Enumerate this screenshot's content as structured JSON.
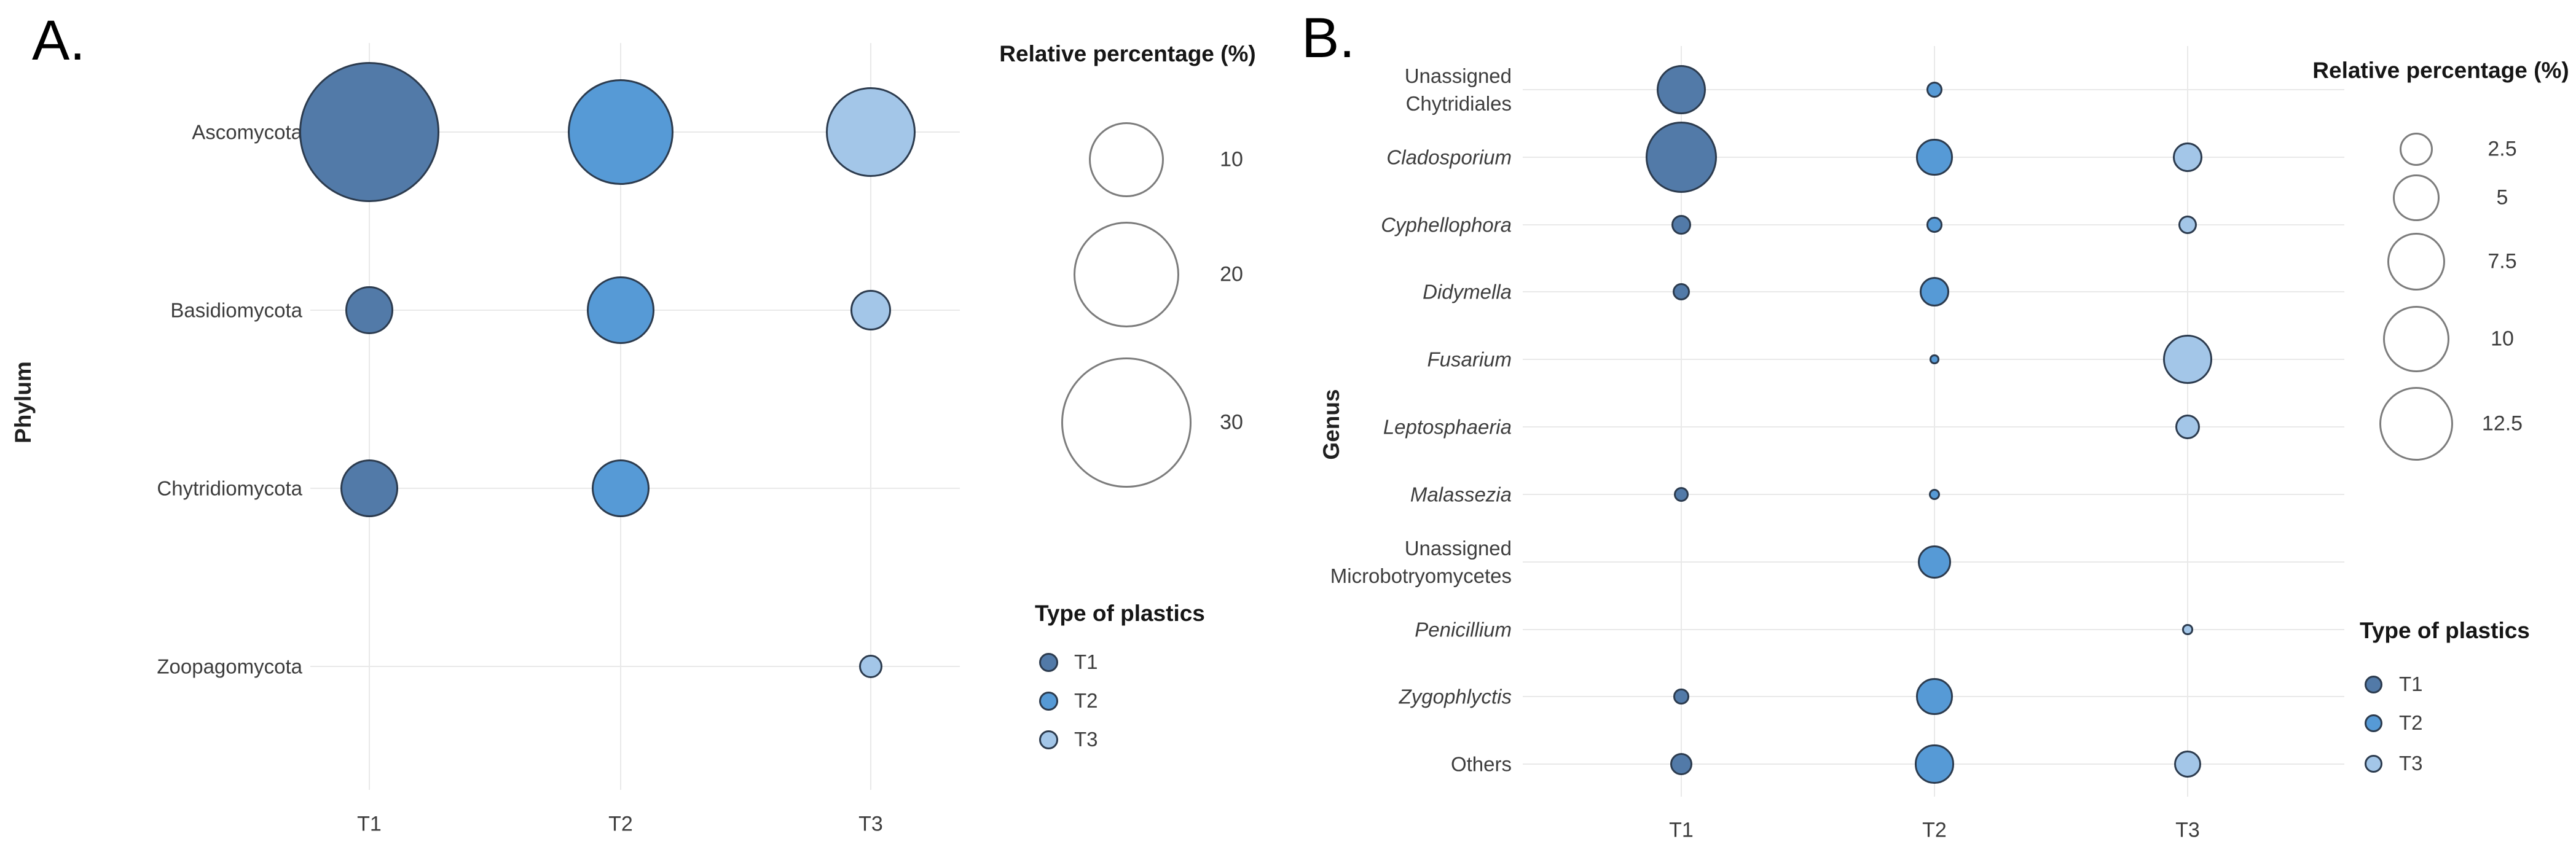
{
  "panels": [
    {
      "panel_label": "A.",
      "y_axis_title": "Phylum",
      "size_legend": {
        "title": "Relative percentage (%)"
      },
      "color_legend": {
        "title": "Type of plastics",
        "items": [
          {
            "label": "T1",
            "color": "#527AA8"
          },
          {
            "label": "T2",
            "color": "#569AD6"
          },
          {
            "label": "T3",
            "color": "#A3C6E8"
          }
        ]
      }
    },
    {
      "panel_label": "B.",
      "y_axis_title": "Genus",
      "size_legend": {
        "title": "Relative percentage (%)"
      },
      "color_legend": {
        "title": "Type of plastics",
        "items": [
          {
            "label": "T1",
            "color": "#527AA8"
          },
          {
            "label": "T2",
            "color": "#569AD6"
          },
          {
            "label": "T3",
            "color": "#A3C6E8"
          }
        ]
      }
    }
  ],
  "chart_data": [
    {
      "type": "scatter",
      "variant": "bubble",
      "panel": "A.",
      "ylabel": "Phylum",
      "xlabel": "",
      "grid": true,
      "legend_position": "right",
      "size_encoding": "area",
      "size_legend_title": "Relative percentage (%)",
      "size_legend_values": [
        10,
        20,
        30
      ],
      "color_legend_title": "Type of plastics",
      "x_categories": [
        "T1",
        "T2",
        "T3"
      ],
      "y_categories": [
        "Ascomycota",
        "Basidiomycota",
        "Chytridiomycota",
        "Zoopagomycota"
      ],
      "y_categories_italic": [
        false,
        false,
        false,
        false
      ],
      "series": [
        {
          "name": "T1",
          "color": "#527AA8",
          "values": [
            35,
            4,
            6,
            null
          ]
        },
        {
          "name": "T2",
          "color": "#569AD6",
          "values": [
            20,
            8,
            6,
            null
          ]
        },
        {
          "name": "T3",
          "color": "#A3C6E8",
          "values": [
            14.5,
            3,
            null,
            1
          ]
        }
      ]
    },
    {
      "type": "scatter",
      "variant": "bubble",
      "panel": "B.",
      "ylabel": "Genus",
      "xlabel": "",
      "grid": true,
      "legend_position": "right",
      "size_encoding": "area",
      "size_legend_title": "Relative percentage (%)",
      "size_legend_values": [
        2.5,
        5,
        7.5,
        10,
        12.5
      ],
      "color_legend_title": "Type of plastics",
      "x_categories": [
        "T1",
        "T2",
        "T3"
      ],
      "y_categories": [
        "Unassigned\nChytridiales",
        "Cladosporium",
        "Cyphellophora",
        "Didymella",
        "Fusarium",
        "Leptosphaeria",
        "Malassezia",
        "Unassigned\nMicrobotryomycetes",
        "Penicillium",
        "Zygophlyctis",
        "Others"
      ],
      "y_categories_italic": [
        false,
        true,
        true,
        true,
        true,
        true,
        true,
        false,
        true,
        true,
        false
      ],
      "series": [
        {
          "name": "T1",
          "color": "#527AA8",
          "values": [
            5.5,
            11.5,
            0.9,
            0.7,
            null,
            null,
            0.5,
            null,
            null,
            0.55,
            1.1
          ]
        },
        {
          "name": "T2",
          "color": "#569AD6",
          "values": [
            0.6,
            3,
            0.55,
            2,
            0.2,
            null,
            0.3,
            2.5,
            null,
            3,
            3.4
          ]
        },
        {
          "name": "T3",
          "color": "#A3C6E8",
          "values": [
            null,
            2,
            0.8,
            null,
            5.5,
            1.4,
            null,
            null,
            0.25,
            null,
            1.7
          ]
        }
      ]
    }
  ]
}
